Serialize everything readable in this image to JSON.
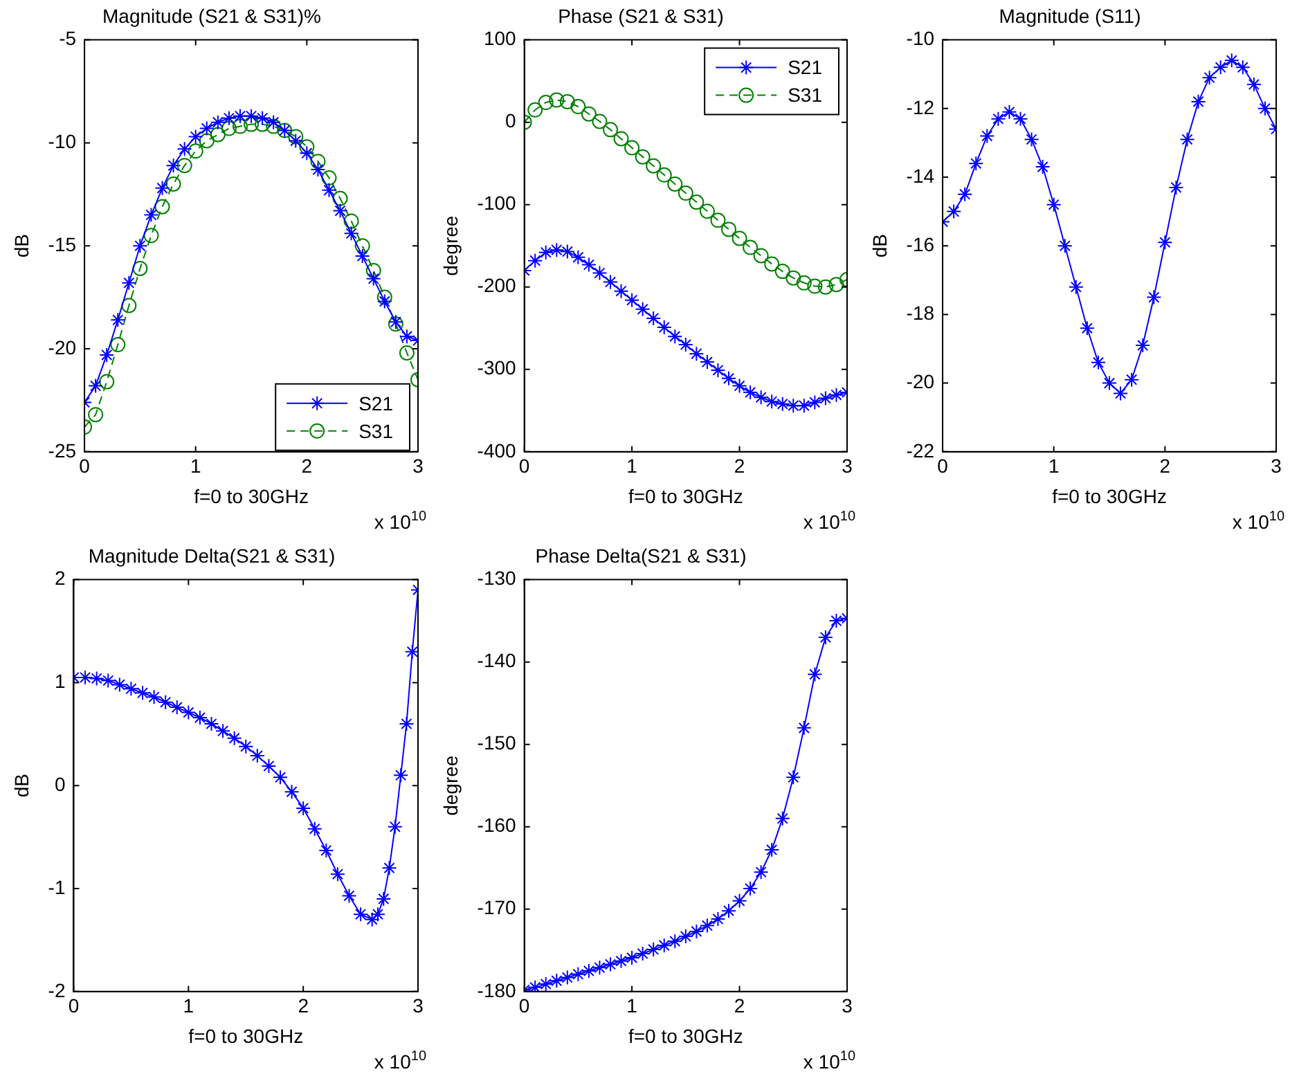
{
  "chart_data": [
    {
      "type": "line",
      "title": "Magnitude (S21 & S31)%",
      "xlabel": "f=0 to 30GHz",
      "ylabel": "dB",
      "annotations": [
        "x 10$^{10}$"
      ],
      "x": [
        0,
        0.1,
        0.2,
        0.3,
        0.4,
        0.5,
        0.6,
        0.7,
        0.8,
        0.9,
        1,
        1.1,
        1.2,
        1.3,
        1.4,
        1.5,
        1.6,
        1.7,
        1.8,
        1.9,
        2,
        2.1,
        2.2,
        2.3,
        2.4,
        2.5,
        2.6,
        2.7,
        2.8,
        2.9,
        3
      ],
      "xlim": [
        0,
        3
      ],
      "xticks": [
        0,
        1,
        2,
        3
      ],
      "ylim": [
        -25,
        -5
      ],
      "yticks": [
        -25,
        -20,
        -15,
        -10,
        -5
      ],
      "grid": false,
      "legend": "bottom right",
      "series": [
        {
          "name": "S21",
          "color": "#0000ff",
          "marker": "cross",
          "line_style": "solid",
          "values": [
            -22.6,
            -21.8,
            -20.3,
            -18.6,
            -16.8,
            -15.0,
            -13.5,
            -12.2,
            -11.1,
            -10.3,
            -9.7,
            -9.3,
            -9.0,
            -8.8,
            -8.7,
            -8.7,
            -8.8,
            -9.0,
            -9.4,
            -9.9,
            -10.5,
            -11.3,
            -12.3,
            -13.3,
            -14.4,
            -15.5,
            -16.6,
            -17.7,
            -18.7,
            -19.4,
            -19.6
          ]
        },
        {
          "name": "S31",
          "color": "#008000",
          "marker": "circle",
          "line_style": "dashed",
          "values": [
            -23.8,
            -23.2,
            -21.6,
            -19.8,
            -17.9,
            -16.1,
            -14.5,
            -13.1,
            -12.0,
            -11.1,
            -10.4,
            -9.9,
            -9.6,
            -9.3,
            -9.2,
            -9.1,
            -9.1,
            -9.2,
            -9.4,
            -9.7,
            -10.2,
            -10.9,
            -11.7,
            -12.7,
            -13.8,
            -15.0,
            -16.2,
            -17.5,
            -18.8,
            -20.2,
            -21.5
          ]
        }
      ]
    },
    {
      "type": "line",
      "title": "Phase (S21 & S31)",
      "xlabel": "f=0 to 30GHz",
      "ylabel": "degree",
      "annotations": [
        "x 10$^{10}$"
      ],
      "x": [
        0,
        0.1,
        0.2,
        0.3,
        0.4,
        0.5,
        0.6,
        0.7,
        0.8,
        0.9,
        1,
        1.1,
        1.2,
        1.3,
        1.4,
        1.5,
        1.6,
        1.7,
        1.8,
        1.9,
        2,
        2.1,
        2.2,
        2.3,
        2.4,
        2.5,
        2.6,
        2.7,
        2.8,
        2.9,
        3
      ],
      "xlim": [
        0,
        3
      ],
      "xticks": [
        0,
        1,
        2,
        3
      ],
      "ylim": [
        -400,
        100
      ],
      "yticks": [
        -400,
        -300,
        -200,
        -100,
        0,
        100
      ],
      "grid": false,
      "legend": "top right",
      "series": [
        {
          "name": "S21",
          "color": "#0000ff",
          "marker": "cross",
          "line_style": "solid",
          "values": [
            -180,
            -168,
            -158,
            -155,
            -157,
            -164,
            -173,
            -183,
            -194,
            -205,
            -216,
            -227,
            -238,
            -249,
            -260,
            -270,
            -281,
            -291,
            -301,
            -311,
            -320,
            -328,
            -334,
            -339,
            -342,
            -344,
            -344,
            -340,
            -335,
            -331,
            -328
          ]
        },
        {
          "name": "S31",
          "color": "#008000",
          "marker": "circle",
          "line_style": "dashed",
          "values": [
            0,
            15,
            24,
            27,
            25,
            19,
            10,
            1,
            -9,
            -20,
            -31,
            -42,
            -53,
            -64,
            -75,
            -86,
            -97,
            -108,
            -119,
            -130,
            -141,
            -152,
            -162,
            -172,
            -181,
            -189,
            -195,
            -199,
            -200,
            -197,
            -191
          ]
        }
      ]
    },
    {
      "type": "line",
      "title": "Magnitude (S11)",
      "xlabel": "f=0 to 30GHz",
      "ylabel": "dB",
      "annotations": [
        "x 10$^{10}$"
      ],
      "x": [
        0,
        0.1,
        0.2,
        0.3,
        0.4,
        0.5,
        0.6,
        0.7,
        0.8,
        0.9,
        1,
        1.1,
        1.2,
        1.3,
        1.4,
        1.5,
        1.6,
        1.7,
        1.8,
        1.9,
        2,
        2.1,
        2.2,
        2.3,
        2.4,
        2.5,
        2.6,
        2.7,
        2.8,
        2.9,
        3
      ],
      "xlim": [
        0,
        3
      ],
      "xticks": [
        0,
        1,
        2,
        3
      ],
      "ylim": [
        -22,
        -10
      ],
      "yticks": [
        -22,
        -20,
        -18,
        -16,
        -14,
        -12,
        -10
      ],
      "grid": false,
      "series": [
        {
          "color": "#0000ff",
          "marker": "cross",
          "line_style": "solid",
          "values": [
            -15.3,
            -15.0,
            -14.5,
            -13.6,
            -12.8,
            -12.3,
            -12.1,
            -12.3,
            -12.9,
            -13.7,
            -14.8,
            -16.0,
            -17.2,
            -18.4,
            -19.4,
            -20.0,
            -20.3,
            -19.9,
            -18.9,
            -17.5,
            -15.9,
            -14.3,
            -12.9,
            -11.8,
            -11.1,
            -10.8,
            -10.6,
            -10.8,
            -11.3,
            -12.0,
            -12.6
          ]
        }
      ]
    },
    {
      "type": "line",
      "title": "Magnitude Delta(S21 & S31)",
      "xlabel": "f=0 to 30GHz",
      "ylabel": "dB",
      "annotations": [
        "x 10$^{10}$"
      ],
      "x": [
        0,
        0.1,
        0.2,
        0.3,
        0.4,
        0.5,
        0.6,
        0.7,
        0.8,
        0.9,
        1,
        1.1,
        1.2,
        1.3,
        1.4,
        1.5,
        1.6,
        1.7,
        1.8,
        1.9,
        2,
        2.1,
        2.2,
        2.3,
        2.4,
        2.5,
        2.6,
        2.65,
        2.7,
        2.75,
        2.8,
        2.85,
        2.9,
        2.95,
        3
      ],
      "xlim": [
        0,
        3
      ],
      "xticks": [
        0,
        1,
        2,
        3
      ],
      "ylim": [
        -2,
        2
      ],
      "yticks": [
        -2,
        -1,
        0,
        1,
        2
      ],
      "grid": false,
      "series": [
        {
          "color": "#0000ff",
          "marker": "cross",
          "line_style": "solid",
          "values": [
            1.05,
            1.05,
            1.04,
            1.02,
            0.98,
            0.94,
            0.9,
            0.86,
            0.81,
            0.76,
            0.71,
            0.66,
            0.6,
            0.53,
            0.46,
            0.38,
            0.29,
            0.19,
            0.08,
            -0.06,
            -0.22,
            -0.42,
            -0.63,
            -0.86,
            -1.07,
            -1.25,
            -1.3,
            -1.25,
            -1.1,
            -0.8,
            -0.4,
            0.1,
            0.6,
            1.3,
            1.9
          ]
        }
      ]
    },
    {
      "type": "line",
      "title": "Phase Delta(S21 & S31)",
      "xlabel": "f=0 to 30GHz",
      "ylabel": "degree",
      "annotations": [
        "x 10$^{10}$"
      ],
      "x": [
        0,
        0.1,
        0.2,
        0.3,
        0.4,
        0.5,
        0.6,
        0.7,
        0.8,
        0.9,
        1,
        1.1,
        1.2,
        1.3,
        1.4,
        1.5,
        1.6,
        1.7,
        1.8,
        1.9,
        2,
        2.1,
        2.2,
        2.3,
        2.4,
        2.5,
        2.6,
        2.7,
        2.8,
        2.9,
        3
      ],
      "xlim": [
        0,
        3
      ],
      "xticks": [
        0,
        1,
        2,
        3
      ],
      "ylim": [
        -180,
        -130
      ],
      "yticks": [
        -180,
        -170,
        -160,
        -150,
        -140,
        -130
      ],
      "grid": false,
      "series": [
        {
          "color": "#0000ff",
          "marker": "cross",
          "line_style": "solid",
          "values": [
            -179.8,
            -179.5,
            -179.1,
            -178.7,
            -178.3,
            -177.9,
            -177.5,
            -177.1,
            -176.7,
            -176.3,
            -175.9,
            -175.4,
            -174.9,
            -174.4,
            -173.9,
            -173.3,
            -172.7,
            -172.0,
            -171.2,
            -170.2,
            -169.0,
            -167.5,
            -165.5,
            -162.8,
            -159.0,
            -154.0,
            -148.0,
            -141.5,
            -137.0,
            -135.0,
            -134.7
          ]
        }
      ]
    }
  ]
}
